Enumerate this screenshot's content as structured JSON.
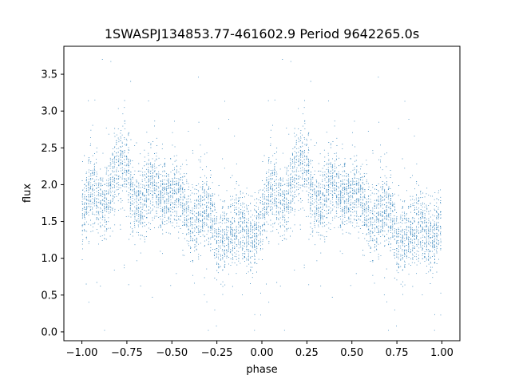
{
  "chart_data": {
    "type": "scatter",
    "title": "1SWASPJ134853.77-461602.9 Period 9642265.0s",
    "xlabel": "phase",
    "ylabel": "flux",
    "xlim": [
      -1.1,
      1.1
    ],
    "ylim": [
      -0.12,
      3.88
    ],
    "x_ticks": [
      -1.0,
      -0.75,
      -0.5,
      -0.25,
      0.0,
      0.25,
      0.5,
      0.75,
      1.0
    ],
    "x_tick_labels": [
      "−1.00",
      "−0.75",
      "−0.50",
      "−0.25",
      "0.00",
      "0.25",
      "0.50",
      "0.75",
      "1.00"
    ],
    "y_ticks": [
      0.0,
      0.5,
      1.0,
      1.5,
      2.0,
      2.5,
      3.0,
      3.5
    ],
    "y_tick_labels": [
      "0.0",
      "0.5",
      "1.0",
      "1.5",
      "2.0",
      "2.5",
      "3.0",
      "3.5"
    ],
    "grid": false,
    "marker_color": "#1f77b4",
    "series_profile": {
      "phase": [
        0.0,
        0.05,
        0.1,
        0.15,
        0.2,
        0.25,
        0.3,
        0.35,
        0.4,
        0.45,
        0.5,
        0.55,
        0.6,
        0.65,
        0.7,
        0.75,
        0.8,
        0.85,
        0.9,
        0.95,
        1.0
      ],
      "flux": [
        1.55,
        1.75,
        1.85,
        1.95,
        2.1,
        2.15,
        1.9,
        1.65,
        1.9,
        2.05,
        1.85,
        1.65,
        1.55,
        1.7,
        1.45,
        1.3,
        1.45,
        1.25,
        1.35,
        1.45,
        1.55
      ]
    },
    "n_points_per_cycle": 3200
  }
}
